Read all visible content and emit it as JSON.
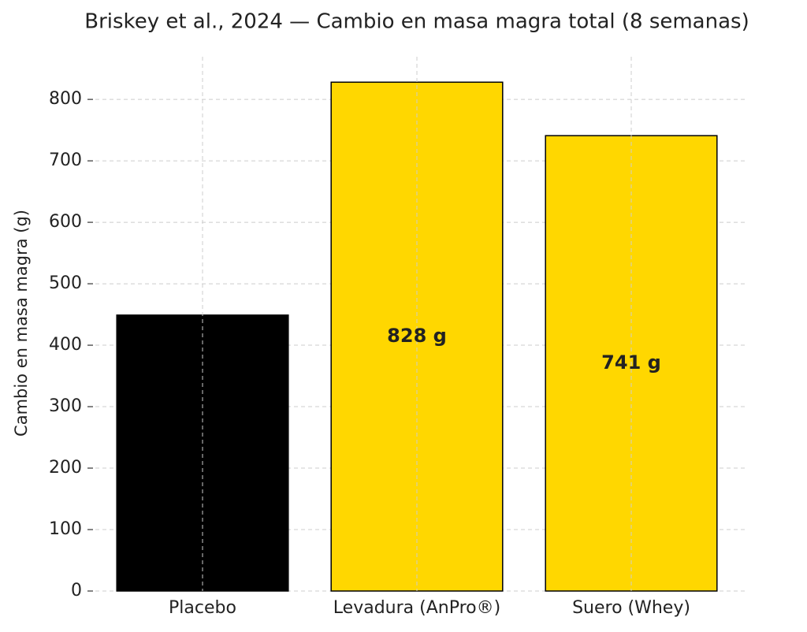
{
  "chart_data": {
    "type": "bar",
    "title": "Briskey et al., 2024 — Cambio en masa magra total (8 semanas)",
    "y_label": "Cambio en masa magra (g)",
    "categories": [
      "Placebo",
      "Levadura (AnPro®)",
      "Suero (Whey)"
    ],
    "values": [
      449,
      828,
      741
    ],
    "value_labels": [
      null,
      "828 g",
      "741 g"
    ],
    "colors": [
      "#000000",
      "#ffd700",
      "#ffd700"
    ],
    "ylim": [
      0,
      869.4
    ],
    "yticks": [
      0,
      100,
      200,
      300,
      400,
      500,
      600,
      700,
      800
    ],
    "grid": true
  }
}
